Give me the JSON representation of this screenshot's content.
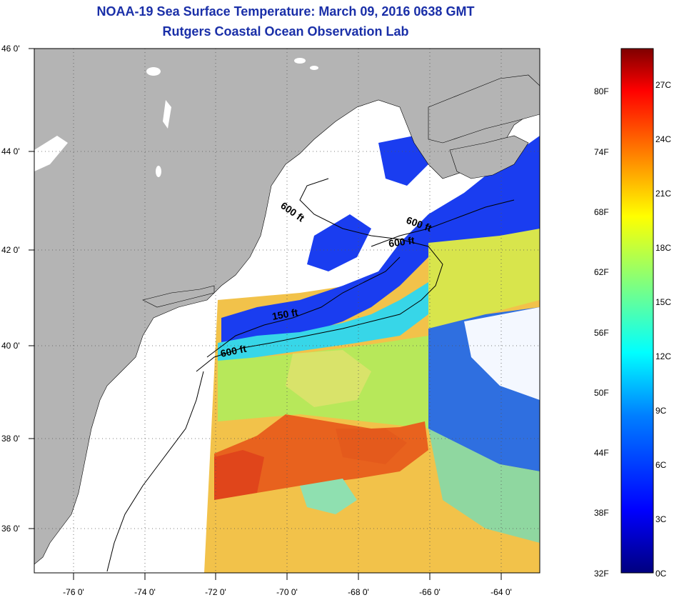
{
  "title": {
    "line1": "NOAA-19 Sea Surface Temperature:  March 09, 2016 0638 GMT",
    "line2": "Rutgers Coastal Ocean Observation Lab"
  },
  "map": {
    "lat_labels": [
      "46 0'",
      "44 0'",
      "42 0'",
      "40 0'",
      "38 0'",
      "36 0'"
    ],
    "lon_labels": [
      "-76 0'",
      "-74 0'",
      "-72 0'",
      "-70 0'",
      "-68 0'",
      "-66 0'",
      "-64 0'"
    ],
    "contour_labels": [
      "600 ft",
      "600 ft",
      "600 ft",
      "150 ft",
      "600 ft"
    ],
    "colors": {
      "land": "#b4b4b4",
      "water_nodata": "#ffffff",
      "title": "#1a2fa8"
    }
  },
  "colorbar": {
    "fahrenheit_labels": [
      "80F",
      "74F",
      "68F",
      "62F",
      "56F",
      "50F",
      "44F",
      "38F",
      "32F"
    ],
    "celsius_labels": [
      "27C",
      "24C",
      "21C",
      "18C",
      "15C",
      "12C",
      "9C",
      "6C",
      "3C",
      "0C"
    ],
    "range_c": [
      0,
      29
    ],
    "palette": [
      "#00007f",
      "#0000ff",
      "#007fff",
      "#00ffff",
      "#7fff7f",
      "#ffff00",
      "#ff7f00",
      "#ff0000",
      "#7f0000"
    ]
  }
}
